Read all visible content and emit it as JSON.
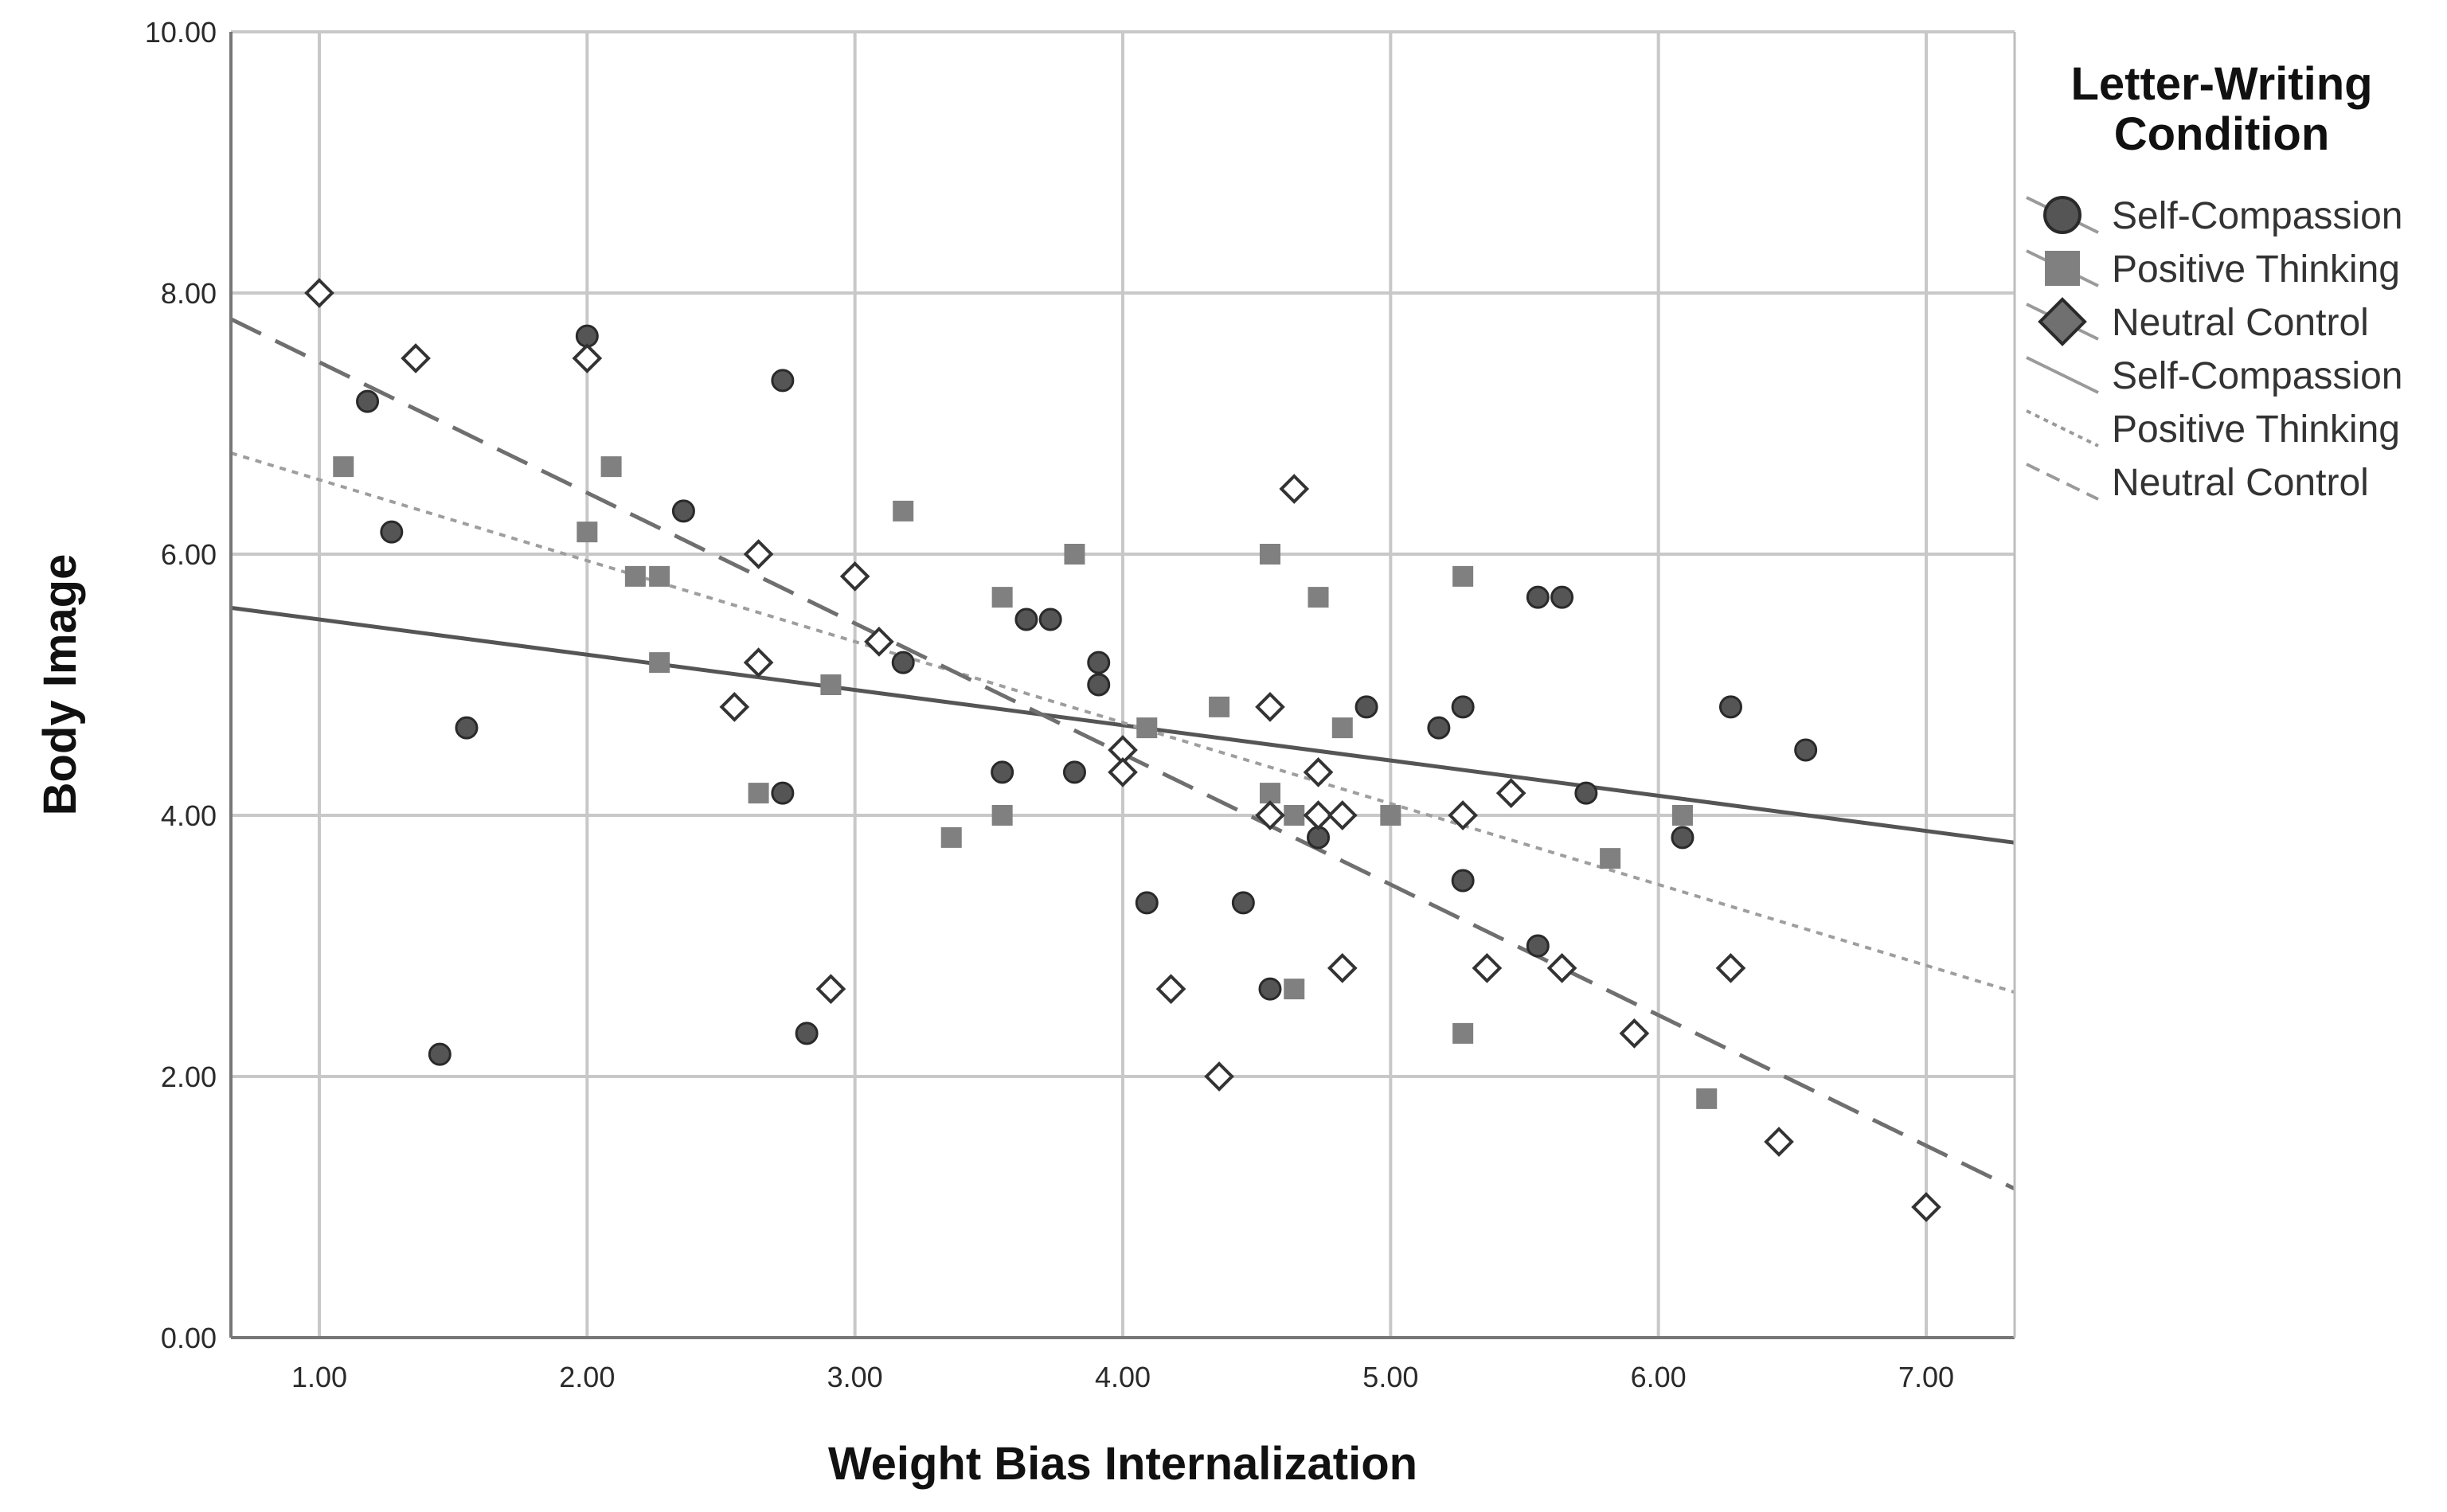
{
  "chart_data": {
    "type": "scatter",
    "xlabel": "Weight Bias Internalization",
    "ylabel": "Body Image",
    "xlim": [
      0.67,
      7.33
    ],
    "ylim": [
      0,
      10
    ],
    "xticks": [
      "1.00",
      "2.00",
      "3.00",
      "4.00",
      "5.00",
      "6.00",
      "7.00"
    ],
    "xtick_values": [
      1,
      2,
      3,
      4,
      5,
      6,
      7
    ],
    "yticks": [
      "0.00",
      "2.00",
      "4.00",
      "6.00",
      "8.00",
      "10.00"
    ],
    "ytick_values": [
      0,
      2,
      4,
      6,
      8,
      10
    ],
    "grid": true,
    "legend": {
      "title_line1": "Letter-Writing",
      "title_line2": "Condition",
      "placement": "right",
      "entries": [
        {
          "label": "Self-Compassion",
          "kind": "circle"
        },
        {
          "label": "Positive Thinking",
          "kind": "square"
        },
        {
          "label": "Neutral Control",
          "kind": "diamond"
        },
        {
          "label": "Self-Compassion",
          "kind": "solid-line"
        },
        {
          "label": "Positive Thinking",
          "kind": "dotted-line"
        },
        {
          "label": "Neutral Control",
          "kind": "dashed-line"
        }
      ]
    },
    "series": [
      {
        "name": "Self-Compassion",
        "marker": "circle",
        "color": "#555555",
        "points": [
          [
            1.18,
            7.17
          ],
          [
            1.27,
            6.17
          ],
          [
            1.45,
            2.17
          ],
          [
            1.55,
            4.67
          ],
          [
            2.0,
            7.67
          ],
          [
            2.36,
            6.33
          ],
          [
            2.73,
            7.33
          ],
          [
            2.73,
            4.17
          ],
          [
            2.82,
            2.33
          ],
          [
            3.18,
            5.17
          ],
          [
            3.55,
            4.33
          ],
          [
            3.64,
            5.5
          ],
          [
            3.73,
            5.5
          ],
          [
            3.82,
            4.33
          ],
          [
            3.91,
            5.17
          ],
          [
            3.91,
            5.0
          ],
          [
            4.09,
            3.33
          ],
          [
            4.45,
            3.33
          ],
          [
            4.55,
            2.67
          ],
          [
            4.73,
            3.83
          ],
          [
            4.91,
            4.83
          ],
          [
            5.18,
            4.67
          ],
          [
            5.27,
            4.83
          ],
          [
            5.27,
            3.5
          ],
          [
            5.55,
            5.67
          ],
          [
            5.64,
            5.67
          ],
          [
            5.55,
            3.0
          ],
          [
            5.73,
            4.17
          ],
          [
            6.09,
            3.83
          ],
          [
            6.27,
            4.83
          ],
          [
            6.55,
            4.5
          ]
        ],
        "fit": {
          "style": "solid",
          "intercept": 5.77,
          "slope": -0.27
        }
      },
      {
        "name": "Positive Thinking",
        "marker": "square",
        "color": "#808080",
        "points": [
          [
            1.09,
            6.67
          ],
          [
            2.0,
            6.17
          ],
          [
            2.09,
            6.67
          ],
          [
            2.18,
            5.83
          ],
          [
            2.27,
            5.83
          ],
          [
            2.27,
            5.17
          ],
          [
            2.64,
            4.17
          ],
          [
            2.91,
            5.0
          ],
          [
            3.18,
            6.33
          ],
          [
            3.36,
            3.83
          ],
          [
            3.55,
            5.67
          ],
          [
            3.55,
            4.0
          ],
          [
            3.82,
            6.0
          ],
          [
            4.09,
            4.67
          ],
          [
            4.36,
            4.83
          ],
          [
            4.55,
            6.0
          ],
          [
            4.55,
            4.17
          ],
          [
            4.64,
            4.0
          ],
          [
            4.64,
            2.67
          ],
          [
            4.73,
            5.67
          ],
          [
            4.82,
            4.67
          ],
          [
            5.0,
            4.0
          ],
          [
            5.27,
            5.83
          ],
          [
            5.27,
            2.33
          ],
          [
            5.82,
            3.67
          ],
          [
            6.09,
            4.0
          ],
          [
            6.18,
            1.83
          ]
        ],
        "fit": {
          "style": "dotted",
          "intercept": 7.19,
          "slope": -0.62
        }
      },
      {
        "name": "Neutral Control",
        "marker": "diamond",
        "color": "#333333",
        "points": [
          [
            1.0,
            8.0
          ],
          [
            1.36,
            7.5
          ],
          [
            2.0,
            7.5
          ],
          [
            2.55,
            4.83
          ],
          [
            2.64,
            6.0
          ],
          [
            2.64,
            5.17
          ],
          [
            2.91,
            2.67
          ],
          [
            3.0,
            5.83
          ],
          [
            3.09,
            5.33
          ],
          [
            4.0,
            4.5
          ],
          [
            4.0,
            4.33
          ],
          [
            4.18,
            2.67
          ],
          [
            4.36,
            2.0
          ],
          [
            4.55,
            4.83
          ],
          [
            4.55,
            4.0
          ],
          [
            4.64,
            6.5
          ],
          [
            4.73,
            4.33
          ],
          [
            4.73,
            4.0
          ],
          [
            4.82,
            4.0
          ],
          [
            4.82,
            2.83
          ],
          [
            5.27,
            4.0
          ],
          [
            5.36,
            2.83
          ],
          [
            5.45,
            4.17
          ],
          [
            5.64,
            2.83
          ],
          [
            5.91,
            2.33
          ],
          [
            6.27,
            2.83
          ],
          [
            6.45,
            1.5
          ],
          [
            7.0,
            1.0
          ]
        ],
        "fit": {
          "style": "dashed",
          "intercept": 8.47,
          "slope": -1.0
        }
      }
    ]
  }
}
